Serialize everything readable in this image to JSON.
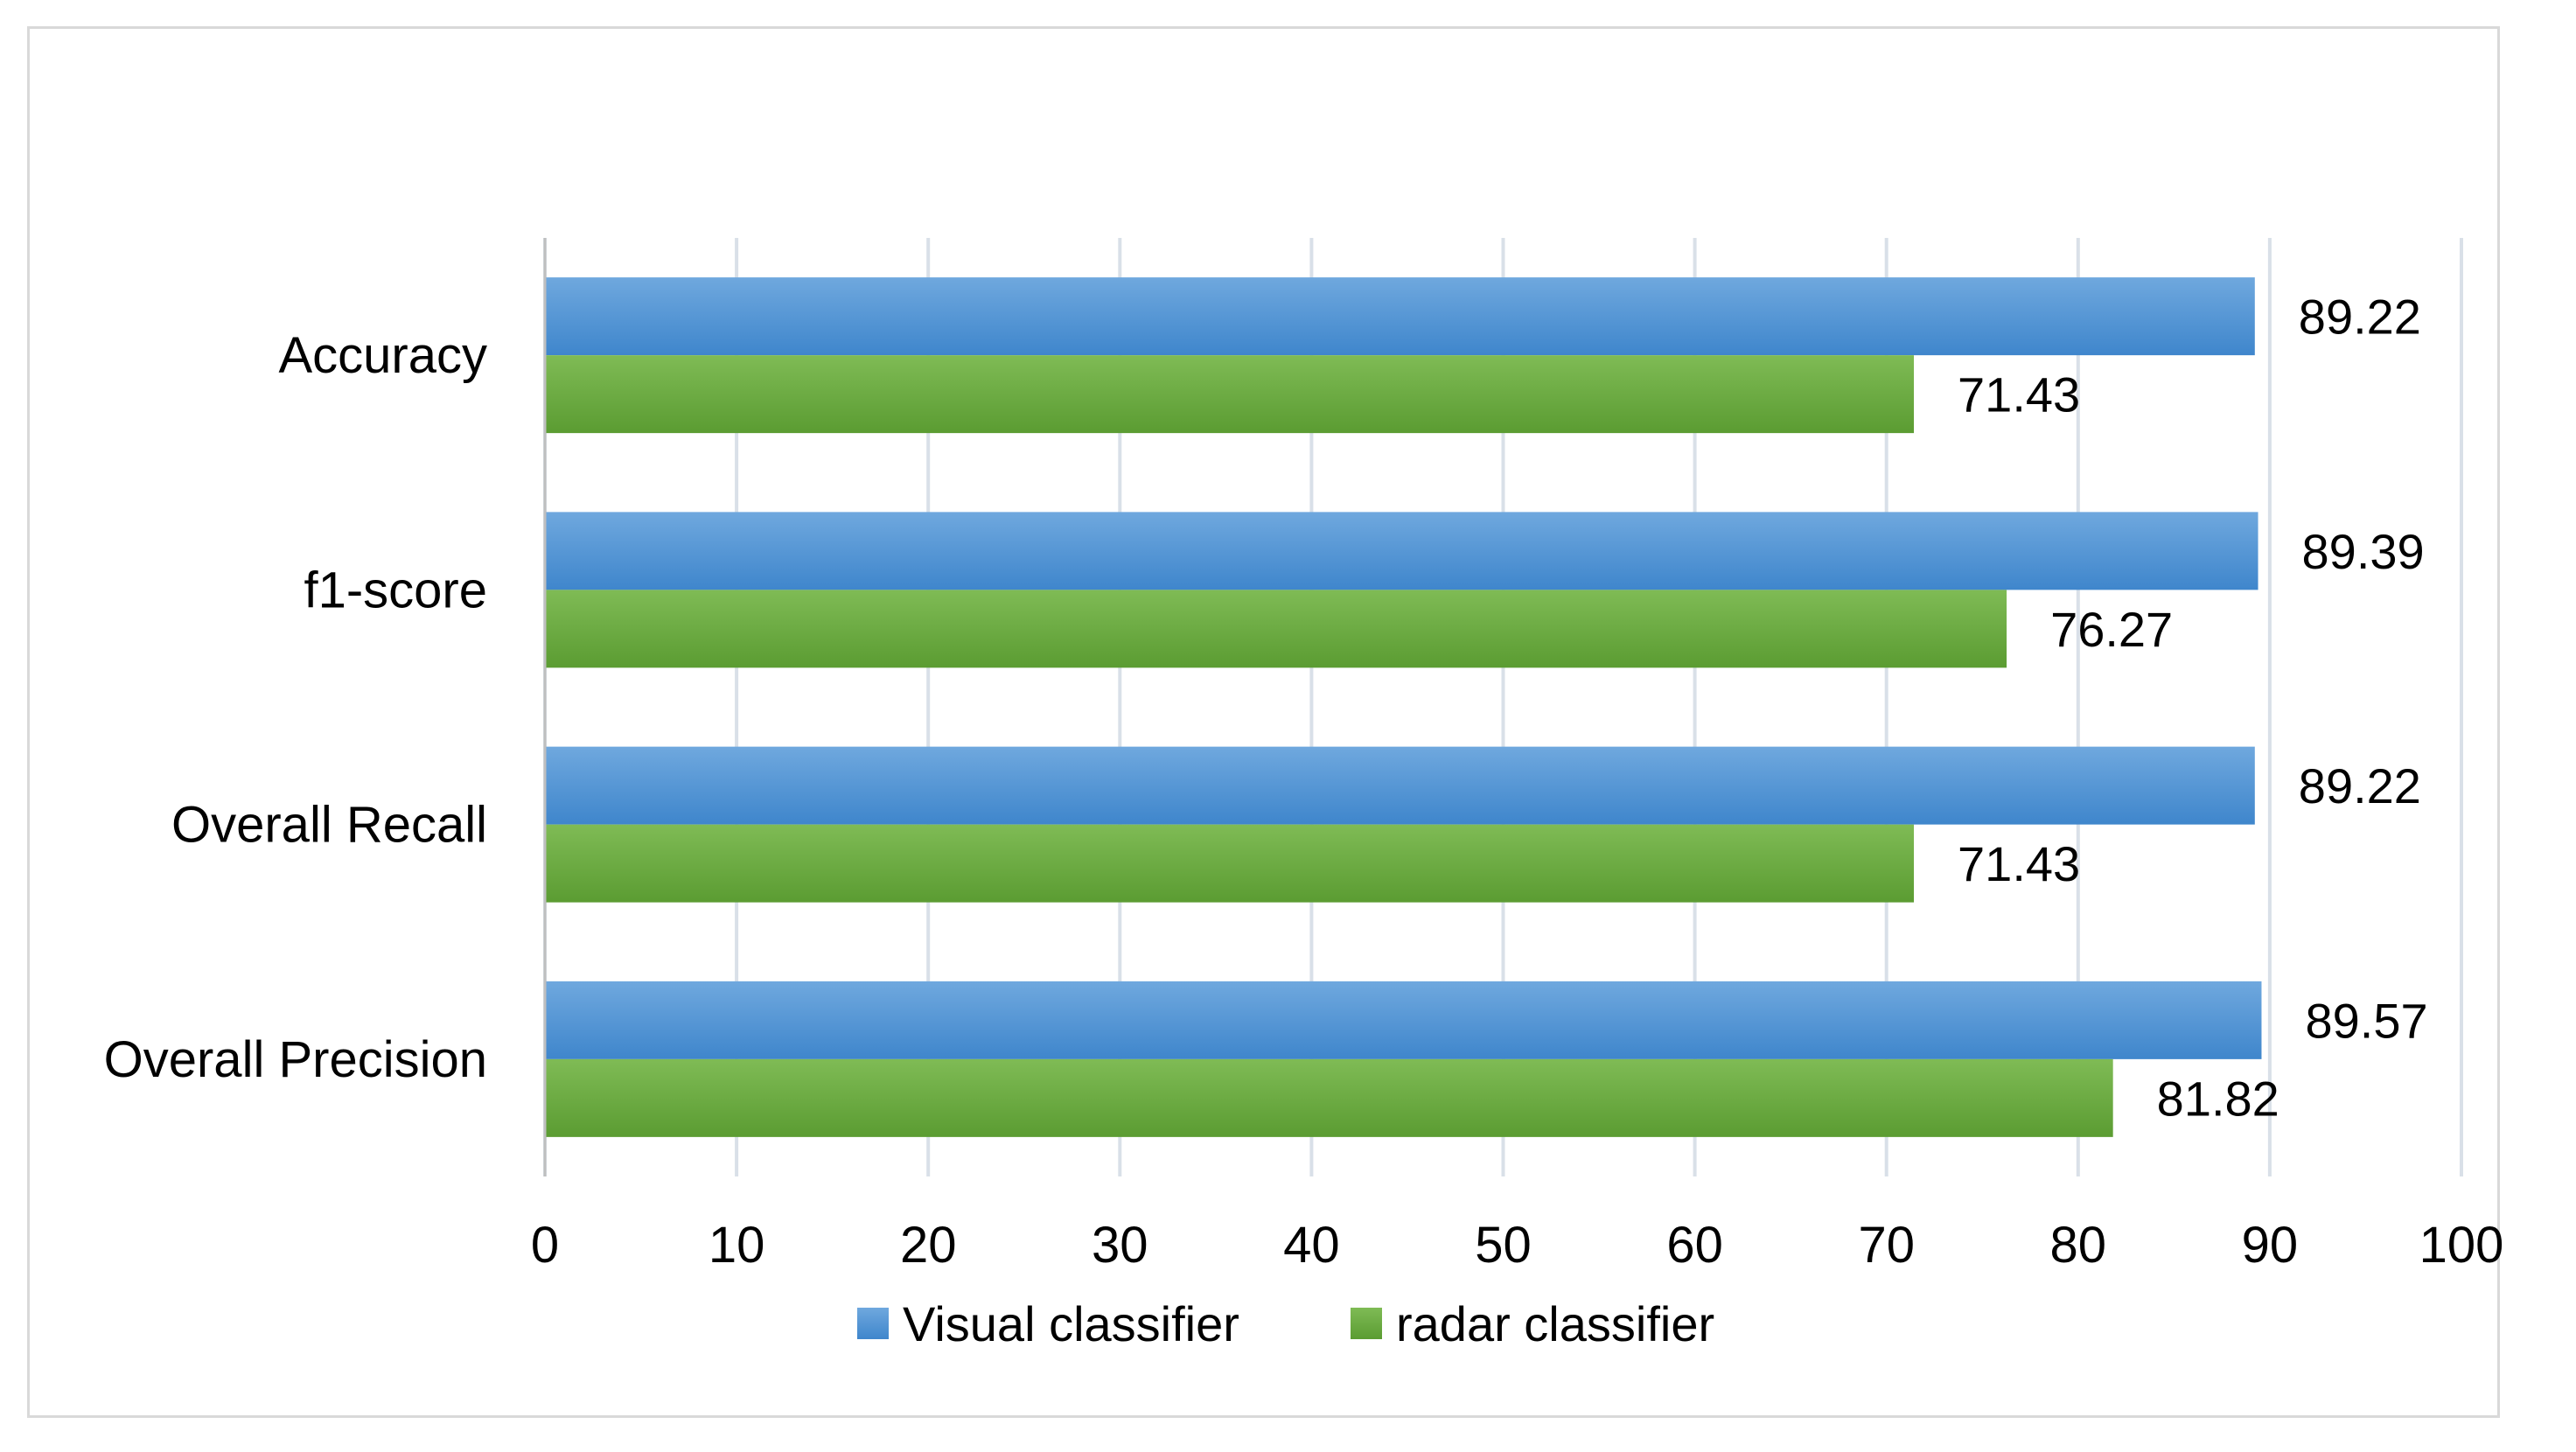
{
  "chart_data": {
    "type": "bar",
    "orientation": "horizontal",
    "title": "",
    "xlabel": "",
    "ylabel": "",
    "categories": [
      "Accuracy",
      "f1-score",
      "Overall Recall",
      "Overall Precision"
    ],
    "series": [
      {
        "name": "Visual classifier",
        "values": [
          89.22,
          89.39,
          89.22,
          89.57
        ],
        "color": "#5b9bd5"
      },
      {
        "name": "radar classifier",
        "values": [
          71.43,
          76.27,
          71.43,
          81.82
        ],
        "color": "#70ad47"
      }
    ],
    "data_labels": [
      [
        "89.22",
        "89.39",
        "89.22",
        "89.57"
      ],
      [
        "71.43",
        "76.27",
        "71.43",
        "81.82"
      ]
    ],
    "xlim": [
      0,
      100
    ],
    "x_ticks": [
      "0",
      "10",
      "20",
      "30",
      "40",
      "50",
      "60",
      "70",
      "80",
      "90",
      "100"
    ],
    "grid": "vertical",
    "legend_position": "bottom"
  }
}
